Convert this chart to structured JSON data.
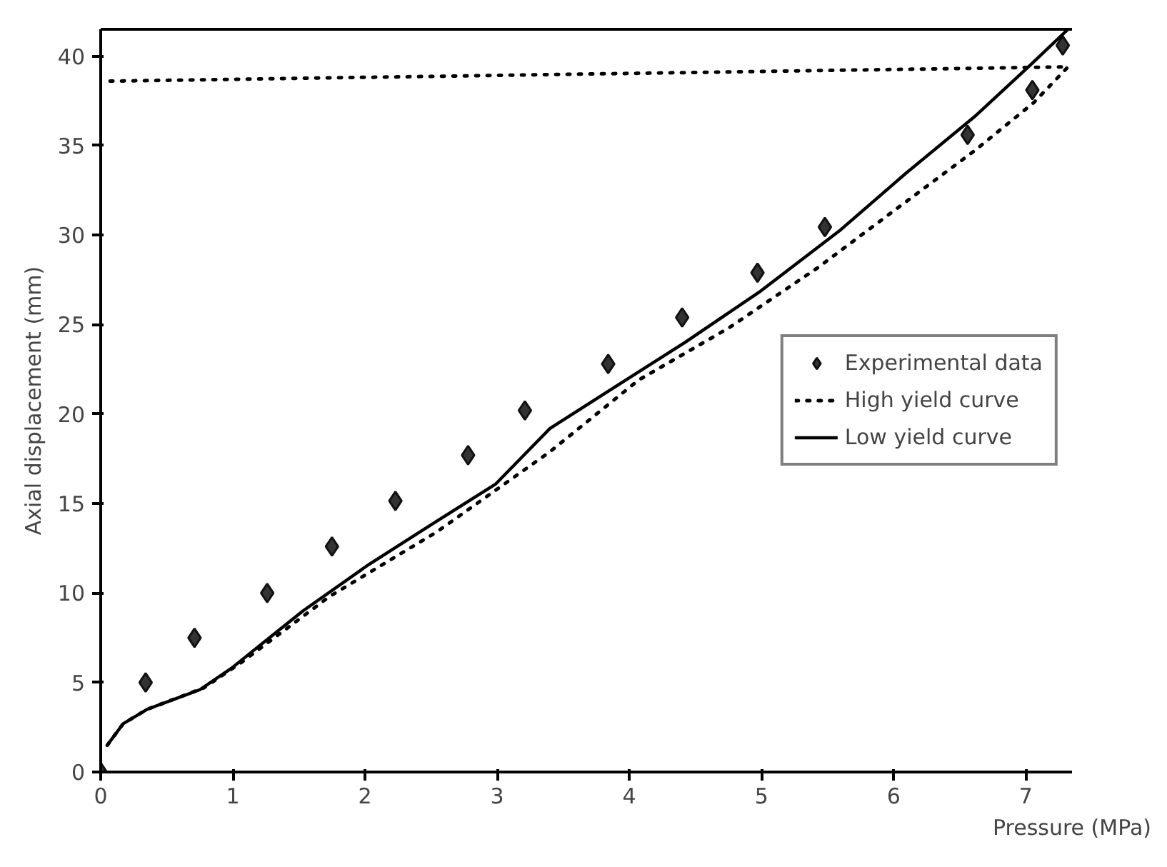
{
  "chart_data": {
    "type": "scatter",
    "xlabel": "Pressure (MPa)",
    "ylabel": "Axial displacement (mm)",
    "xlim": [
      0,
      7.35
    ],
    "ylim": [
      0,
      41.5
    ],
    "xticks": [
      0,
      1,
      2,
      3,
      4,
      5,
      6,
      7
    ],
    "yticks": [
      0,
      5,
      10,
      15,
      20,
      25,
      30,
      35,
      40
    ],
    "grid": false,
    "legend": "right",
    "series": [
      {
        "name": "Experimental data",
        "marker": "diamond",
        "color": "#333333",
        "x": [
          0,
          0.34,
          0.71,
          1.26,
          1.75,
          2.23,
          2.78,
          3.21,
          3.84,
          4.4,
          4.97,
          5.48,
          6.56,
          7.05,
          7.28
        ],
        "values": [
          0,
          5.0,
          7.5,
          10.0,
          12.6,
          15.15,
          17.7,
          20.2,
          22.8,
          25.4,
          27.9,
          30.45,
          35.6,
          38.1,
          40.6
        ]
      },
      {
        "name": "High yield curve",
        "type": "line",
        "line_style": "dotted",
        "color": "#000000",
        "x": [
          0.05,
          0.17,
          0.35,
          0.78,
          1.06,
          1.73,
          2.54,
          3.4,
          4.07,
          4.75,
          5.43,
          6.1,
          6.61,
          7.06,
          7.32,
          0.05
        ],
        "values": [
          1.5,
          2.7,
          3.5,
          4.7,
          6.1,
          9.8,
          13.4,
          17.9,
          21.9,
          24.8,
          28.2,
          31.9,
          34.7,
          37.4,
          39.4,
          38.6
        ]
      },
      {
        "name": "Low yield curve",
        "type": "line",
        "line_style": "solid",
        "color": "#000000",
        "x": [
          0.05,
          0.17,
          0.35,
          0.75,
          0.99,
          1.26,
          1.53,
          2.03,
          2.54,
          2.99,
          3.4,
          3.91,
          4.42,
          4.98,
          5.6,
          6.1,
          6.61,
          7.02,
          7.32
        ],
        "values": [
          1.5,
          2.7,
          3.5,
          4.6,
          5.8,
          7.4,
          9.0,
          11.6,
          14.0,
          16.1,
          19.2,
          21.6,
          24.0,
          26.8,
          30.3,
          33.5,
          36.6,
          39.4,
          41.5
        ]
      }
    ]
  }
}
